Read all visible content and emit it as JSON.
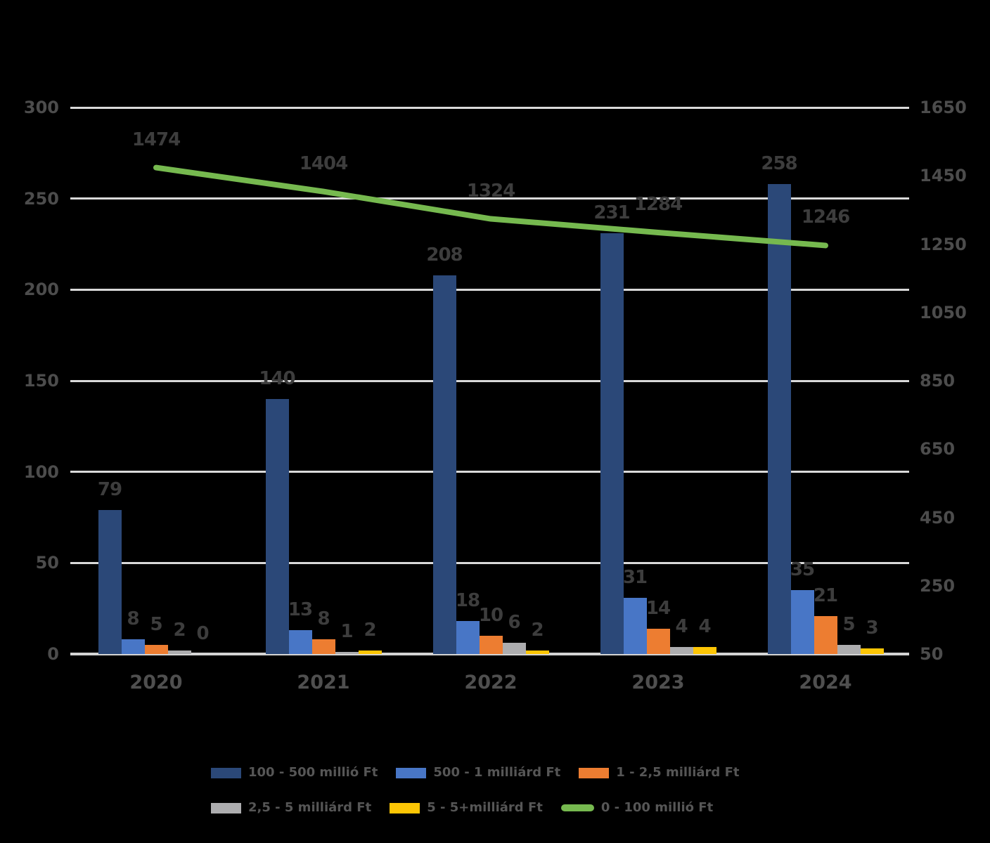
{
  "colors": {
    "background": "#000000",
    "grid": "#D9D9D9",
    "baseline": "#D4D4D4",
    "axis_text": "#4C4C4C",
    "year_text": "#4F4F4F",
    "data_label_text": "#3D3D3D",
    "legend_text": "#565656"
  },
  "chart_data": {
    "type": "bar",
    "subtype": "grouped-bars-with-line",
    "title": "",
    "categories": [
      "2020",
      "2021",
      "2022",
      "2023",
      "2024"
    ],
    "series": [
      {
        "name": "100 - 500 millió Ft",
        "color": "#2B4878",
        "axis": "left",
        "values": [
          79,
          140,
          208,
          231,
          258
        ]
      },
      {
        "name": "500 - 1 milliárd Ft",
        "color": "#4876C6",
        "axis": "left",
        "values": [
          8,
          13,
          18,
          31,
          35
        ]
      },
      {
        "name": "1 - 2,5 milliárd Ft",
        "color": "#ED7D31",
        "axis": "left",
        "values": [
          5,
          8,
          10,
          14,
          21
        ]
      },
      {
        "name": "2,5 - 5 milliárd Ft",
        "color": "#ADADAF",
        "axis": "left",
        "values": [
          2,
          1,
          6,
          4,
          5
        ]
      },
      {
        "name": "5 - 5+milliárd Ft",
        "color": "#FDC605",
        "axis": "left",
        "values": [
          0,
          2,
          2,
          4,
          3
        ]
      }
    ],
    "line_series": {
      "name": "0 - 100 millió Ft",
      "color": "#76B94F",
      "axis": "right",
      "values": [
        1474,
        1404,
        1324,
        1284,
        1246
      ]
    },
    "left_axis": {
      "min": 0,
      "max": 300,
      "step": 50,
      "ticks": [
        300,
        250,
        200,
        150,
        100,
        50,
        0
      ]
    },
    "right_axis": {
      "min": 50,
      "max": 1650,
      "step": 200,
      "ticks": [
        1650,
        1450,
        1250,
        1050,
        850,
        650,
        450,
        250,
        50
      ]
    },
    "grid": true,
    "legend_position": "bottom",
    "legend_rows": [
      [
        "100 - 500 millió Ft",
        "500 - 1 milliárd Ft",
        "1 - 2,5 milliárd Ft"
      ],
      [
        "2,5 - 5 milliárd Ft",
        "5 - 5+milliárd Ft",
        "0 - 100 millió Ft"
      ]
    ]
  }
}
